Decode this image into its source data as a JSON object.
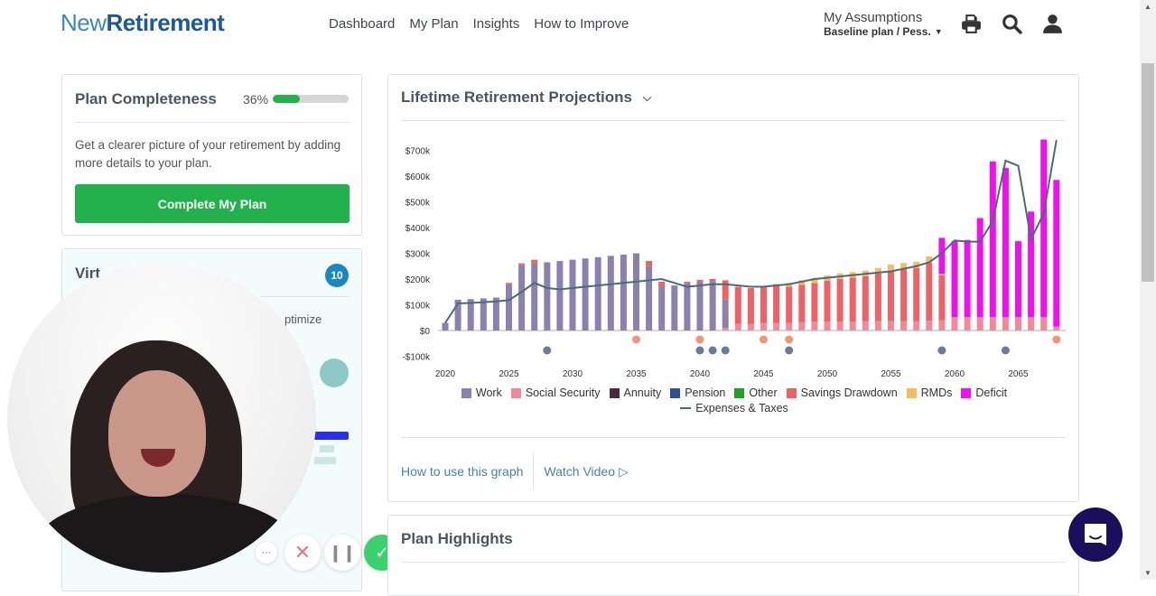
{
  "header": {
    "logo_new": "New",
    "logo_retirement": "Retirement",
    "nav": [
      "Dashboard",
      "My Plan",
      "Insights",
      "How to Improve"
    ],
    "assumptions_title": "My Assumptions",
    "assumptions_value": "Baseline plan / Pess."
  },
  "plan_completeness": {
    "title": "Plan Completeness",
    "percent_label": "36%",
    "percent": 36,
    "description": "Get a clearer picture of your retirement by adding more details to your plan.",
    "button": "Complete My Plan"
  },
  "virtual_card": {
    "title_partial": "Virt",
    "badge": "10",
    "text_partial": "ptimize"
  },
  "video_controls": {
    "more": "···",
    "close": "✕",
    "pause": "❙❙",
    "done": "✓"
  },
  "projections": {
    "title": "Lifetime Retirement Projections",
    "link_how": "How to use this graph",
    "link_video": "Watch Video"
  },
  "plan_highlights": {
    "title": "Plan Highlights"
  },
  "colors": {
    "work": "#8a82ad",
    "social_security": "#f08a96",
    "annuity": "#4a2a3a",
    "pension": "#2f4f8f",
    "other": "#22a022",
    "savings_drawdown": "#ee6166",
    "rmds": "#f5bc60",
    "deficit": "#ee10ee",
    "expenses": "#4c6b78",
    "event_orange": "#f0957a",
    "event_blue": "#6b7a9c",
    "green": "#22b14c"
  },
  "chart_data": {
    "type": "bar",
    "stacked": true,
    "title": "Lifetime Retirement Projections",
    "xlabel": "",
    "ylabel": "",
    "ylim": [
      -100,
      700
    ],
    "y_ticks": [
      "-$100k",
      "$0",
      "$100k",
      "$200k",
      "$300k",
      "$400k",
      "$500k",
      "$600k",
      "$700k"
    ],
    "y_tick_values": [
      -100,
      0,
      100,
      200,
      300,
      400,
      500,
      600,
      700
    ],
    "x_ticks": [
      "2020",
      "2025",
      "2030",
      "2035",
      "2040",
      "2045",
      "2050",
      "2055",
      "2060",
      "2065"
    ],
    "x": [
      2020,
      2021,
      2022,
      2023,
      2024,
      2025,
      2026,
      2027,
      2028,
      2029,
      2030,
      2031,
      2032,
      2033,
      2034,
      2035,
      2036,
      2037,
      2038,
      2039,
      2040,
      2041,
      2042,
      2043,
      2044,
      2045,
      2046,
      2047,
      2048,
      2049,
      2050,
      2051,
      2052,
      2053,
      2054,
      2055,
      2056,
      2057,
      2058,
      2059,
      2060,
      2061,
      2062,
      2063,
      2064,
      2065,
      2066,
      2067,
      2068
    ],
    "legend": [
      "Work",
      "Social Security",
      "Annuity",
      "Pension",
      "Other",
      "Savings Drawdown",
      "RMDs",
      "Deficit",
      "Expenses & Taxes"
    ],
    "legend_position": "bottom",
    "series": [
      {
        "name": "Work",
        "values": [
          30,
          120,
          122,
          125,
          128,
          180,
          255,
          260,
          265,
          270,
          275,
          280,
          285,
          290,
          295,
          300,
          250,
          170,
          175,
          185,
          190,
          192,
          110,
          0,
          0,
          0,
          0,
          0,
          0,
          0,
          0,
          0,
          0,
          0,
          0,
          0,
          0,
          0,
          0,
          0,
          0,
          0,
          0,
          0,
          0,
          0,
          0,
          0,
          0
        ]
      },
      {
        "name": "Social Security",
        "values": [
          0,
          0,
          0,
          0,
          0,
          0,
          0,
          0,
          0,
          0,
          0,
          0,
          0,
          0,
          0,
          0,
          0,
          0,
          0,
          0,
          0,
          0,
          10,
          25,
          25,
          30,
          30,
          30,
          32,
          34,
          34,
          35,
          35,
          36,
          36,
          37,
          37,
          37,
          38,
          40,
          52,
          52,
          52,
          52,
          52,
          52,
          52,
          52,
          15
        ]
      },
      {
        "name": "Savings Drawdown",
        "values": [
          0,
          0,
          0,
          0,
          0,
          5,
          6,
          15,
          0,
          0,
          0,
          0,
          0,
          0,
          0,
          0,
          20,
          20,
          0,
          5,
          7,
          8,
          75,
          145,
          140,
          140,
          150,
          140,
          145,
          150,
          160,
          165,
          170,
          175,
          185,
          195,
          200,
          205,
          225,
          175,
          0,
          0,
          0,
          0,
          0,
          0,
          0,
          0,
          0
        ]
      },
      {
        "name": "RMDs",
        "values": [
          0,
          0,
          0,
          0,
          0,
          0,
          0,
          0,
          0,
          0,
          0,
          0,
          0,
          0,
          0,
          0,
          0,
          0,
          0,
          0,
          0,
          0,
          0,
          0,
          0,
          0,
          0,
          15,
          18,
          20,
          20,
          22,
          22,
          22,
          22,
          24,
          25,
          25,
          25,
          5,
          0,
          0,
          0,
          0,
          0,
          0,
          0,
          0,
          0
        ]
      },
      {
        "name": "Deficit",
        "values": [
          0,
          0,
          0,
          0,
          0,
          0,
          0,
          0,
          0,
          0,
          0,
          0,
          0,
          0,
          0,
          0,
          0,
          0,
          0,
          0,
          0,
          0,
          0,
          0,
          0,
          0,
          0,
          0,
          0,
          0,
          0,
          0,
          0,
          0,
          0,
          0,
          0,
          0,
          0,
          140,
          295,
          300,
          385,
          605,
          580,
          295,
          410,
          690,
          570
        ]
      },
      {
        "name": "Expenses & Taxes",
        "type": "line",
        "values": [
          30,
          105,
          107,
          110,
          113,
          118,
          150,
          185,
          165,
          160,
          165,
          170,
          175,
          180,
          185,
          190,
          195,
          200,
          185,
          170,
          175,
          180,
          180,
          175,
          170,
          170,
          175,
          180,
          190,
          200,
          205,
          210,
          215,
          220,
          225,
          230,
          240,
          250,
          265,
          300,
          350,
          345,
          345,
          425,
          660,
          640,
          355,
          455,
          740
        ]
      }
    ],
    "event_markers": [
      {
        "year": 2028,
        "kind": "blue",
        "row": 2
      },
      {
        "year": 2035,
        "kind": "orange",
        "row": 1
      },
      {
        "year": 2040,
        "kind": "orange",
        "row": 1
      },
      {
        "year": 2040,
        "kind": "blue",
        "row": 2
      },
      {
        "year": 2041,
        "kind": "blue",
        "row": 2
      },
      {
        "year": 2042,
        "kind": "blue",
        "row": 2
      },
      {
        "year": 2045,
        "kind": "orange",
        "row": 1
      },
      {
        "year": 2047,
        "kind": "orange",
        "row": 1
      },
      {
        "year": 2047,
        "kind": "blue",
        "row": 2
      },
      {
        "year": 2059,
        "kind": "blue",
        "row": 2
      },
      {
        "year": 2064,
        "kind": "blue",
        "row": 2
      },
      {
        "year": 2068,
        "kind": "orange",
        "row": 1
      }
    ]
  }
}
